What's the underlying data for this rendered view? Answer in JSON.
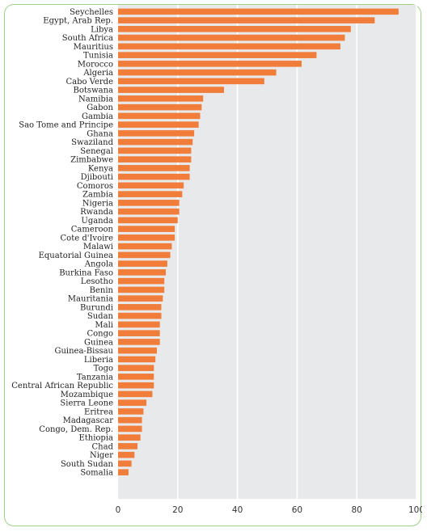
{
  "chart_data": {
    "type": "bar",
    "orientation": "horizontal",
    "title": "",
    "xlabel": "",
    "ylabel": "",
    "xlim": [
      0,
      100
    ],
    "xticks": [
      0,
      20,
      40,
      60,
      80,
      100
    ],
    "grid": true,
    "colors": {
      "bar": "#f07d3a",
      "plot_background": "#e8e9eb",
      "grid": "#ffffff",
      "frame": "#9ccf8a"
    },
    "categories": [
      "Seychelles",
      "Egypt, Arab Rep.",
      "Libya",
      "South Africa",
      "Mauritius",
      "Tunisia",
      "Morocco",
      "Algeria",
      "Cabo Verde",
      "Botswana",
      "Namibia",
      "Gabon",
      "Gambia",
      "Sao Tome and Principe",
      "Ghana",
      "Swaziland",
      "Senegal",
      "Zimbabwe",
      "Kenya",
      "Djibouti",
      "Comoros",
      "Zambia",
      "Nigeria",
      "Rwanda",
      "Uganda",
      "Cameroon",
      "Cote d'Ivoire",
      "Malawi",
      "Equatorial Guinea",
      "Angola",
      "Burkina Faso",
      "Lesotho",
      "Benin",
      "Mauritania",
      "Burundi",
      "Sudan",
      "Mali",
      "Congo",
      "Guinea",
      "Guinea-Bissau",
      "Liberia",
      "Togo",
      "Tanzania",
      "Central African Republic",
      "Mozambique",
      "Sierra Leone",
      "Eritrea",
      "Madagascar",
      "Congo, Dem. Rep.",
      "Ethiopia",
      "Chad",
      "Niger",
      "South Sudan",
      "Somalia"
    ],
    "values": [
      94,
      86,
      78,
      76,
      74.5,
      66.5,
      61.5,
      53,
      49,
      35.5,
      28.5,
      28,
      27.5,
      27,
      25.5,
      25,
      24.5,
      24.5,
      24,
      24,
      22,
      21.5,
      20.5,
      20.5,
      20,
      19,
      19,
      18,
      17.5,
      16.5,
      16,
      15.5,
      15.5,
      15,
      14.5,
      14.5,
      14,
      14,
      14,
      13,
      12.5,
      12,
      12,
      12,
      11.5,
      9.5,
      8.5,
      8,
      8,
      7.5,
      6.5,
      5.5,
      4.5,
      3.5
    ]
  }
}
